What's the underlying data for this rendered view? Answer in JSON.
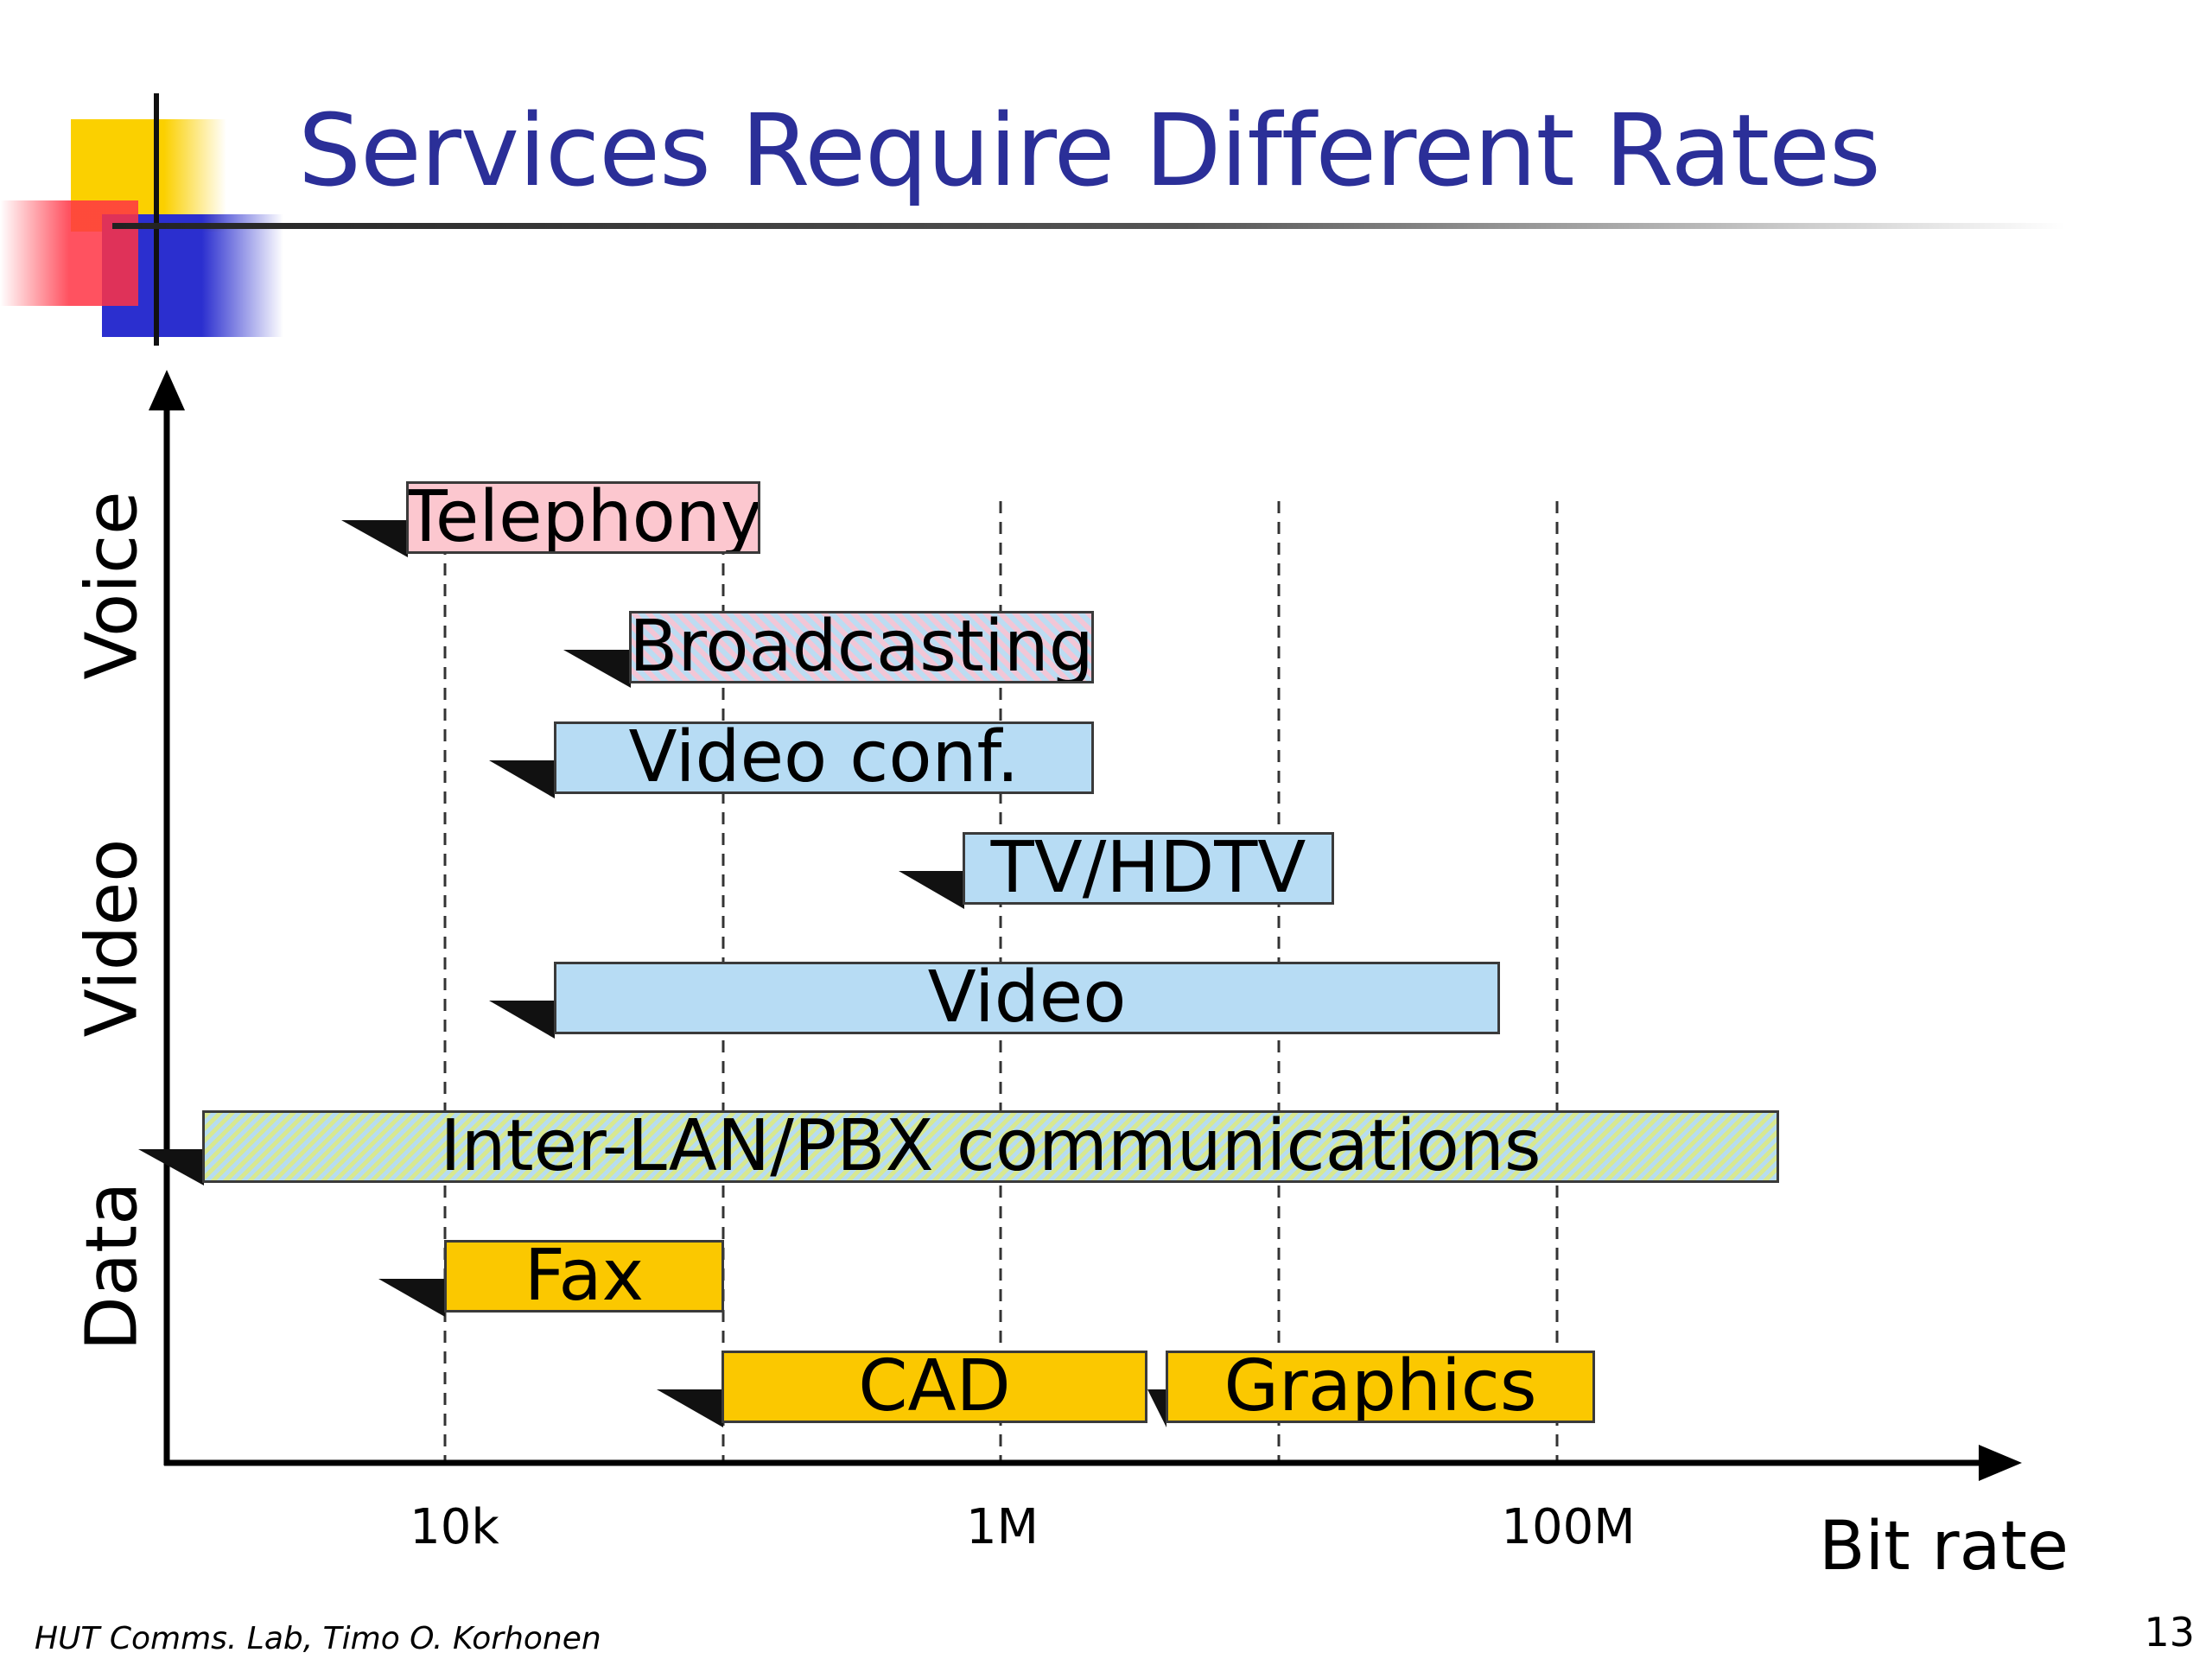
{
  "title": "Services Require Different Rates",
  "y_labels": {
    "voice": "Voice",
    "video": "Video",
    "data": "Data"
  },
  "x_axis": {
    "title": "Bit rate",
    "ticks": [
      "10k",
      "1M",
      "100M"
    ],
    "scale": "log"
  },
  "services": [
    {
      "label": "Telephony",
      "color": "pink"
    },
    {
      "label": "Broadcasting",
      "color": "hatch-pb"
    },
    {
      "label": "Video conf.",
      "color": "blue"
    },
    {
      "label": "TV/HDTV",
      "color": "blue"
    },
    {
      "label": "Video",
      "color": "blue"
    },
    {
      "label": "Inter-LAN/PBX communications",
      "color": "hatch-yb"
    },
    {
      "label": "Fax",
      "color": "yellow"
    },
    {
      "label": "CAD",
      "color": "yellow"
    },
    {
      "label": "Graphics",
      "color": "yellow"
    }
  ],
  "footer": "HUT Comms. Lab, Timo O. Korhonen",
  "page_number": "13",
  "colors": {
    "title": "#2b2f98",
    "pink": "#fcc7cf",
    "blue": "#b7dcf4",
    "yellow": "#fbc800"
  }
}
